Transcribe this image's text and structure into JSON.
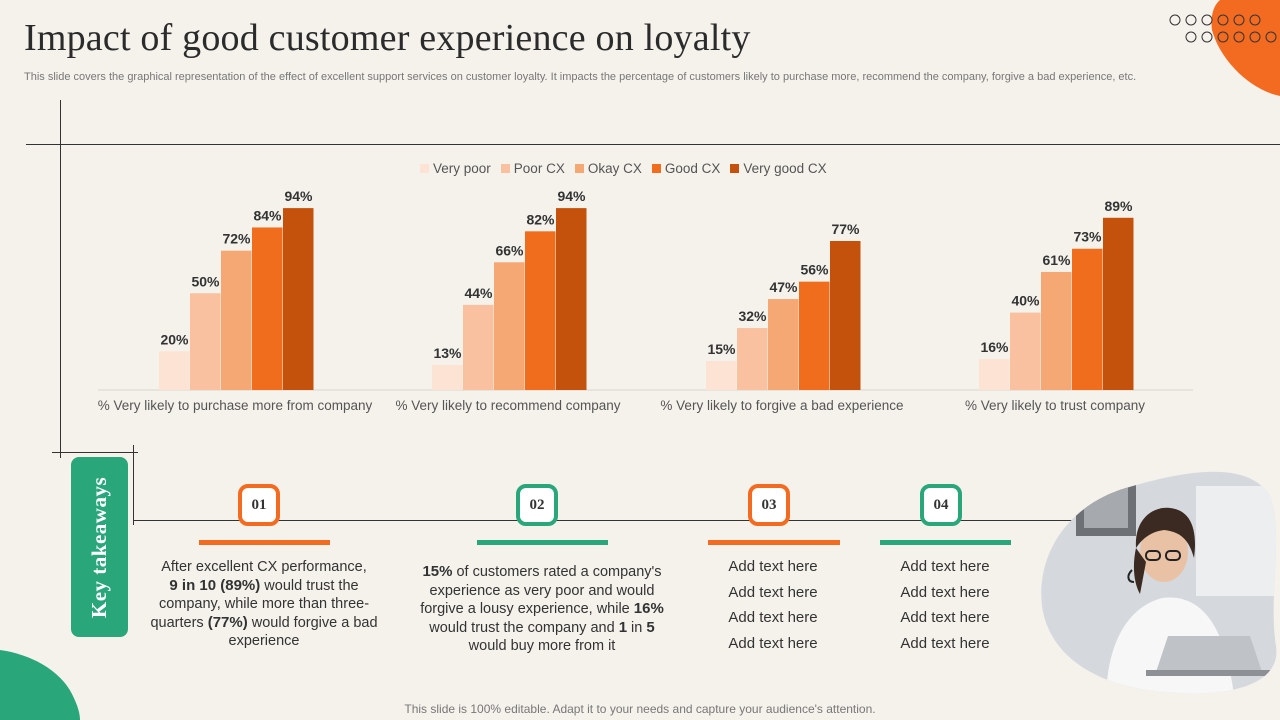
{
  "header": {
    "title": "Impact of good customer experience on loyalty",
    "subtitle": "This slide covers the graphical representation of the effect of excellent support services on customer loyalty. It impacts the percentage of customers likely to purchase more, recommend the company, forgive a bad experience, etc."
  },
  "colors": {
    "accent_orange": "#f36b21",
    "accent_green": "#2aa67b",
    "series": [
      "#fde3d4",
      "#f9c19f",
      "#f5a774",
      "#f06d1e",
      "#c4510c"
    ]
  },
  "chart_data": {
    "type": "bar",
    "categories": [
      "% Very likely to purchase more from company",
      "% Very likely to recommend company",
      "% Very likely to forgive a bad experience",
      "% Very likely to trust company"
    ],
    "series": [
      {
        "name": "Very poor",
        "values": [
          20,
          13,
          15,
          16
        ]
      },
      {
        "name": "Poor CX",
        "values": [
          50,
          44,
          32,
          40
        ]
      },
      {
        "name": "Okay CX",
        "values": [
          72,
          66,
          47,
          61
        ]
      },
      {
        "name": "Good CX",
        "values": [
          84,
          82,
          56,
          73
        ]
      },
      {
        "name": "Very good CX",
        "values": [
          94,
          94,
          77,
          89
        ]
      }
    ],
    "value_suffix": "%",
    "ylim": [
      0,
      100
    ],
    "legend_position": "top"
  },
  "takeaways": {
    "label": "Key takeaways",
    "items": [
      {
        "number": "01"
      },
      {
        "number": "02"
      },
      {
        "number": "03",
        "lines": [
          "Add text here",
          "Add text here",
          "Add text here",
          "Add text here"
        ]
      },
      {
        "number": "04",
        "lines": [
          "Add text here",
          "Add text here",
          "Add text here",
          "Add text here"
        ]
      }
    ],
    "t1": {
      "a": "After excellent CX performance,",
      "b1": "9 in 10 (89%)",
      "b2": " would trust the company, while more than three-quarters ",
      "b3": "(77%)",
      "b4": " would forgive a bad experience"
    },
    "t2": {
      "a1": "15%",
      "a2": " of customers rated a company's experience as very poor and would forgive a lousy experience, while ",
      "a3": "16%",
      "a4": " would trust the company and ",
      "a5": "1",
      "a6": " in ",
      "a7": "5",
      "a8": " would buy more from it"
    }
  },
  "footer": "This slide is 100% editable. Adapt it to your needs and capture your audience's attention."
}
